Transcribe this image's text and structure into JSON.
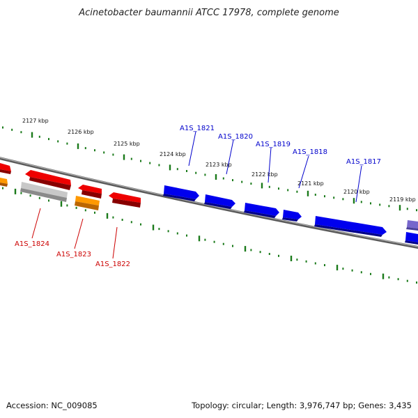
{
  "title": "Acinetobacter baumannii ATCC 17978, complete genome",
  "footer": {
    "accession": "Accession: NC_009085",
    "summary": "Topology: circular; Length: 3,976,747 bp; Genes: 3,435"
  },
  "colors": {
    "backbone": "#808080",
    "tick": "#1a7a1a",
    "forward_gene": "#0000ee",
    "reverse_gene": "#ee0000",
    "orange_gene": "#ff9900",
    "gray_gene": "#bbbbbb",
    "purple_gene": "#7766cc",
    "forward_label": "#0000cc",
    "reverse_label": "#cc0000"
  },
  "scale_labels": [
    "2127 kbp",
    "2126 kbp",
    "2125 kbp",
    "2124 kbp",
    "2123 kbp",
    "2122 kbp",
    "2121 kbp",
    "2120 kbp",
    "2119 kbp"
  ],
  "forward_genes": [
    "A1S_1821",
    "A1S_1820",
    "A1S_1819",
    "A1S_1818",
    "A1S_1817"
  ],
  "reverse_genes": [
    "A1S_1824",
    "A1S_1823",
    "A1S_1822"
  ]
}
